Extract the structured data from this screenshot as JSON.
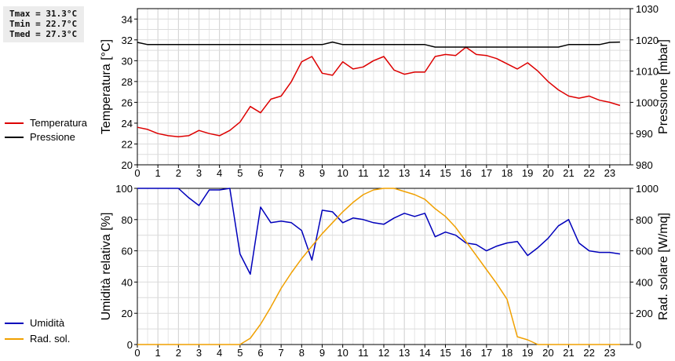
{
  "stats": {
    "tmax": "Tmax = 31.3°C",
    "tmin": "Tmin = 22.7°C",
    "tmed": "Tmed = 27.3°C"
  },
  "chart_data": [
    {
      "type": "line",
      "x_ticks": [
        "0",
        "1",
        "2",
        "3",
        "4",
        "5",
        "6",
        "7",
        "8",
        "9",
        "10",
        "11",
        "12",
        "13",
        "14",
        "15",
        "16",
        "17",
        "18",
        "19",
        "20",
        "21",
        "22",
        "23"
      ],
      "xlim": [
        0,
        24
      ],
      "grid": true,
      "legend_placement": "left",
      "left_axis": {
        "label": "Temperatura [°C]",
        "ylim": [
          20,
          35
        ],
        "ticks": [
          "20",
          "22",
          "24",
          "26",
          "28",
          "30",
          "32",
          "34"
        ]
      },
      "right_axis": {
        "label": "Pressione [mbar]",
        "ylim": [
          980,
          1030
        ],
        "ticks": [
          "980",
          "990",
          "1000",
          "1010",
          "1020",
          "1030"
        ]
      },
      "series": [
        {
          "name": "Temperatura",
          "axis": "left",
          "color": "#dd0000",
          "x": [
            0,
            0.5,
            1,
            1.5,
            2,
            2.5,
            3,
            3.5,
            4,
            4.5,
            5,
            5.5,
            6,
            6.5,
            7,
            7.5,
            8,
            8.5,
            9,
            9.5,
            10,
            10.5,
            11,
            11.5,
            12,
            12.5,
            13,
            13.5,
            14,
            14.5,
            15,
            15.5,
            16,
            16.5,
            17,
            17.5,
            18,
            18.5,
            19,
            19.5,
            20,
            20.5,
            21,
            21.5,
            22,
            22.5,
            23,
            23.5
          ],
          "y": [
            23.6,
            23.4,
            23.0,
            22.8,
            22.7,
            22.8,
            23.3,
            23.0,
            22.8,
            23.3,
            24.1,
            25.6,
            25.0,
            26.3,
            26.6,
            28.0,
            29.9,
            30.4,
            28.8,
            28.6,
            29.9,
            29.2,
            29.4,
            30.0,
            30.4,
            29.1,
            28.7,
            28.9,
            28.9,
            30.4,
            30.6,
            30.5,
            31.3,
            30.6,
            30.5,
            30.2,
            29.7,
            29.2,
            29.8,
            29.0,
            28.0,
            27.2,
            26.6,
            26.4,
            26.6,
            26.2,
            26.0,
            25.7
          ]
        },
        {
          "name": "Pressione",
          "axis": "right",
          "color": "#000000",
          "x": [
            0,
            0.5,
            1,
            1.5,
            2,
            2.5,
            3,
            3.5,
            4,
            4.5,
            5,
            5.5,
            6,
            6.5,
            7,
            7.5,
            8,
            8.5,
            9,
            9.5,
            10,
            10.5,
            11,
            11.5,
            12,
            12.5,
            13,
            13.5,
            14,
            14.5,
            15,
            15.5,
            16,
            16.5,
            17,
            17.5,
            18,
            18.5,
            19,
            19.5,
            20,
            20.5,
            21,
            21.5,
            22,
            22.5,
            23,
            23.5
          ],
          "y": [
            1019.2,
            1018.5,
            1018.5,
            1018.5,
            1018.5,
            1018.5,
            1018.5,
            1018.5,
            1018.5,
            1018.5,
            1018.5,
            1018.5,
            1018.5,
            1018.5,
            1018.5,
            1018.5,
            1018.5,
            1018.5,
            1018.5,
            1019.3,
            1018.5,
            1018.5,
            1018.5,
            1018.5,
            1018.5,
            1018.5,
            1018.5,
            1018.5,
            1018.5,
            1017.7,
            1017.7,
            1017.7,
            1017.7,
            1017.7,
            1017.7,
            1017.7,
            1017.7,
            1017.7,
            1017.7,
            1017.7,
            1017.7,
            1017.7,
            1018.5,
            1018.5,
            1018.5,
            1018.5,
            1019.2,
            1019.3
          ]
        }
      ]
    },
    {
      "type": "line",
      "x_ticks": [
        "0",
        "1",
        "2",
        "3",
        "4",
        "5",
        "6",
        "7",
        "8",
        "9",
        "10",
        "11",
        "12",
        "13",
        "14",
        "15",
        "16",
        "17",
        "18",
        "19",
        "20",
        "21",
        "22",
        "23"
      ],
      "xlim": [
        0,
        24
      ],
      "grid": true,
      "legend_placement": "left",
      "left_axis": {
        "label": "Umidità relativa [%]",
        "ylim": [
          0,
          100
        ],
        "ticks": [
          "0",
          "20",
          "40",
          "60",
          "80",
          "100"
        ]
      },
      "right_axis": {
        "label": "Rad. solare [W/mq]",
        "ylim": [
          0,
          1000
        ],
        "ticks": [
          "0",
          "200",
          "400",
          "600",
          "800",
          "1000"
        ]
      },
      "series": [
        {
          "name": "Umidità",
          "axis": "left",
          "color": "#0000bb",
          "x": [
            0,
            0.5,
            1,
            1.5,
            2,
            2.5,
            3,
            3.5,
            4,
            4.5,
            5,
            5.5,
            6,
            6.5,
            7,
            7.5,
            8,
            8.5,
            9,
            9.5,
            10,
            10.5,
            11,
            11.5,
            12,
            12.5,
            13,
            13.5,
            14,
            14.5,
            15,
            15.5,
            16,
            16.5,
            17,
            17.5,
            18,
            18.5,
            19,
            19.5,
            20,
            20.5,
            21,
            21.5,
            22,
            22.5,
            23,
            23.5
          ],
          "y": [
            100,
            100,
            100,
            100,
            100,
            94,
            89,
            99,
            99,
            100,
            58,
            45,
            88,
            78,
            79,
            78,
            73,
            54,
            86,
            85,
            78,
            81,
            80,
            78,
            77,
            81,
            84,
            82,
            84,
            69,
            72,
            70,
            65,
            64,
            60,
            63,
            65,
            66,
            57,
            62,
            68,
            76,
            80,
            65,
            60,
            59,
            59,
            58
          ]
        },
        {
          "name": "Rad. sol.",
          "axis": "right",
          "color": "#f0a000",
          "x": [
            0,
            1,
            2,
            3,
            4,
            5,
            5.5,
            6,
            6.5,
            7,
            7.5,
            8,
            8.5,
            9,
            9.5,
            10,
            10.5,
            11,
            11.5,
            12,
            12.5,
            13,
            13.5,
            14,
            14.5,
            15,
            15.5,
            16,
            16.5,
            17,
            17.5,
            18,
            18.5,
            19,
            19.5,
            20,
            21,
            22,
            23,
            23.5
          ],
          "y": [
            0,
            0,
            0,
            0,
            0,
            0,
            40,
            130,
            240,
            360,
            460,
            550,
            630,
            710,
            780,
            850,
            910,
            960,
            990,
            1000,
            1000,
            980,
            960,
            930,
            870,
            820,
            750,
            660,
            570,
            480,
            390,
            290,
            50,
            30,
            0,
            0,
            0,
            0,
            0,
            0
          ]
        }
      ]
    }
  ]
}
